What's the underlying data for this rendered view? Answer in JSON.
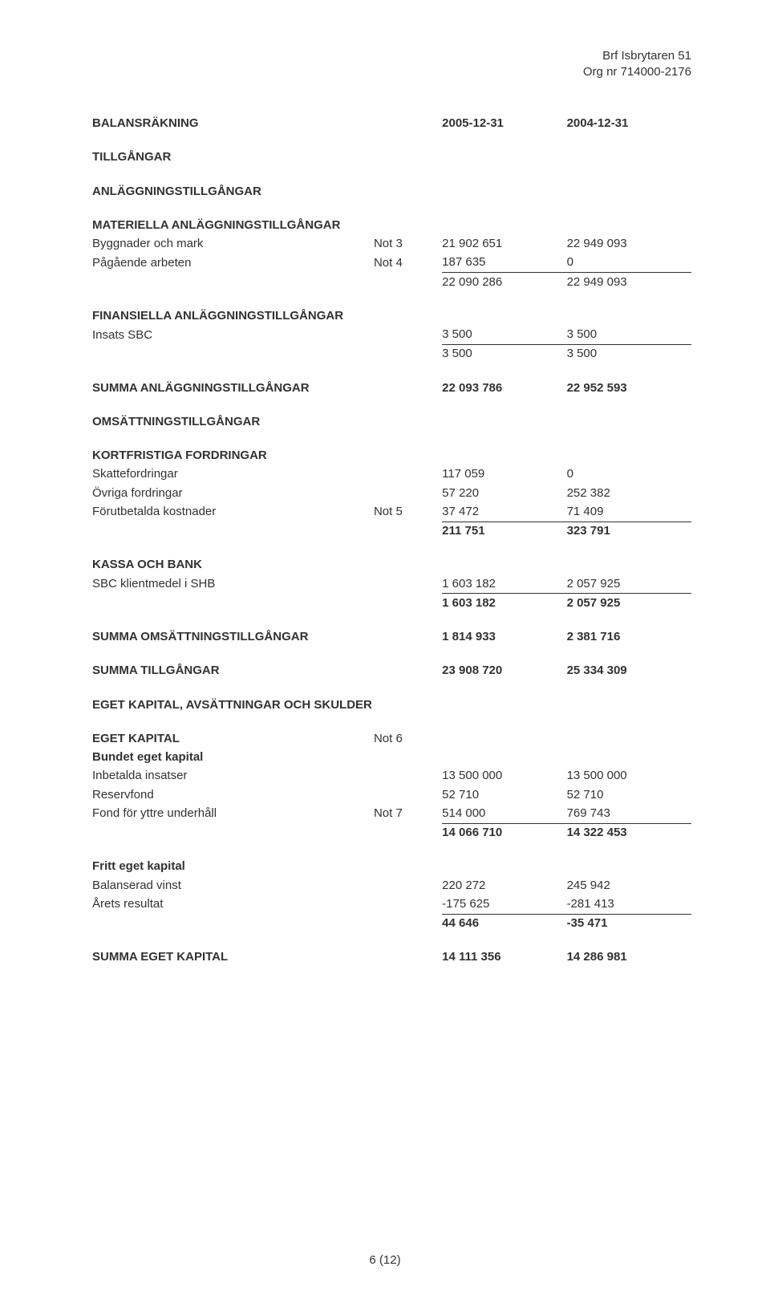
{
  "header": {
    "name": "Brf Isbrytaren 51",
    "org": "Org nr 714000-2176"
  },
  "title": "BALANSRÄKNING",
  "dates": {
    "d1": "2005-12-31",
    "d2": "2004-12-31"
  },
  "s": {
    "tillgangar": "TILLGÅNGAR",
    "anlaggnings": "ANLÄGGNINGSTILLGÅNGAR",
    "mat": "MATERIELLA ANLÄGGNINGSTILLGÅNGAR",
    "bygg": {
      "l": "Byggnader och mark",
      "n": "Not 3",
      "v1": "21 902 651",
      "v2": "22 949 093"
    },
    "pag": {
      "l": "Pågående arbeten",
      "n": "Not 4",
      "v1": "187 635",
      "v2": "0"
    },
    "matsum": {
      "v1": "22 090 286",
      "v2": "22 949 093"
    },
    "fin": "FINANSIELLA ANLÄGGNINGSTILLGÅNGAR",
    "insats": {
      "l": "Insats SBC",
      "v1": "3 500",
      "v2": "3 500"
    },
    "finsum": {
      "v1": "3 500",
      "v2": "3 500"
    },
    "sumanl": {
      "l": "SUMMA ANLÄGGNINGSTILLGÅNGAR",
      "v1": "22 093 786",
      "v2": "22 952 593"
    },
    "oms": "OMSÄTTNINGSTILLGÅNGAR",
    "kort": "KORTFRISTIGA FORDRINGAR",
    "skatt": {
      "l": "Skattefordringar",
      "v1": "117 059",
      "v2": "0"
    },
    "ovr": {
      "l": "Övriga fordringar",
      "v1": "57 220",
      "v2": "252 382"
    },
    "forut": {
      "l": "Förutbetalda kostnader",
      "n": "Not 5",
      "v1": "37 472",
      "v2": "71 409"
    },
    "kortsum": {
      "v1": "211 751",
      "v2": "323 791"
    },
    "kassa": "KASSA OCH BANK",
    "sbc": {
      "l": "SBC klientmedel i SHB",
      "v1": "1 603 182",
      "v2": "2 057 925"
    },
    "kassasum": {
      "v1": "1 603 182",
      "v2": "2 057 925"
    },
    "sumoms": {
      "l": "SUMMA OMSÄTTNINGSTILLGÅNGAR",
      "v1": "1 814 933",
      "v2": "2 381 716"
    },
    "sumtill": {
      "l": "SUMMA TILLGÅNGAR",
      "v1": "23 908 720",
      "v2": "25 334 309"
    },
    "eget": "EGET KAPITAL, AVSÄTTNINGAR OCH SKULDER",
    "egetkap": {
      "l": "EGET KAPITAL",
      "n": "Not 6"
    },
    "bundet": "Bundet eget kapital",
    "inbet": {
      "l": "Inbetalda insatser",
      "v1": "13 500 000",
      "v2": "13 500 000"
    },
    "reserv": {
      "l": "Reservfond",
      "v1": "52 710",
      "v2": "52 710"
    },
    "fond": {
      "l": "Fond för yttre underhåll",
      "n": "Not 7",
      "v1": "514 000",
      "v2": "769 743"
    },
    "bundetsum": {
      "v1": "14 066 710",
      "v2": "14 322 453"
    },
    "fritt": "Fritt eget kapital",
    "bal": {
      "l": "Balanserad vinst",
      "v1": "220 272",
      "v2": "245 942"
    },
    "arets": {
      "l": "Årets resultat",
      "v1": "-175 625",
      "v2": "-281 413"
    },
    "frittsum": {
      "v1": "44 646",
      "v2": "-35 471"
    },
    "sumeget": {
      "l": "SUMMA EGET KAPITAL",
      "v1": "14 111 356",
      "v2": "14 286 981"
    }
  },
  "footer": "6 (12)"
}
